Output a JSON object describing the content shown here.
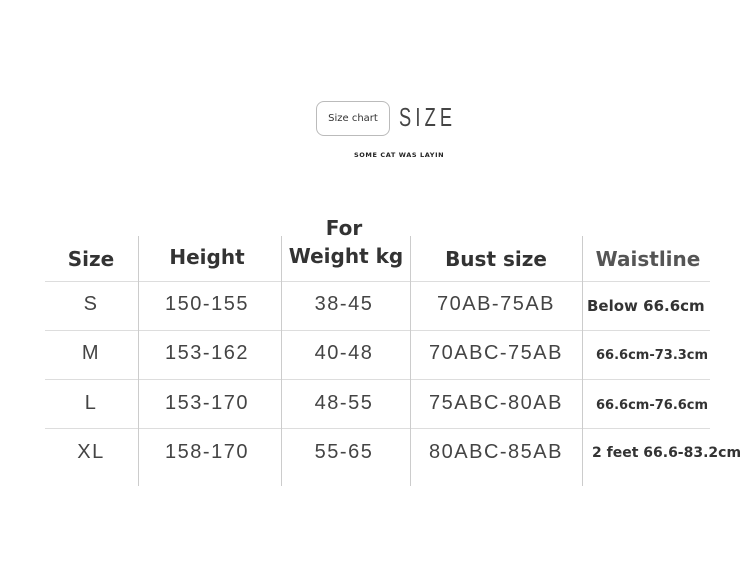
{
  "header": {
    "badge": "Size chart",
    "title": "SIZE",
    "subtitle": "SOME CAT WAS LAYIN"
  },
  "table": {
    "columns": [
      "Size",
      "Height",
      "For Weight kg",
      "Bust size",
      "Waistline"
    ],
    "weight_header_line1": "For",
    "weight_header_line2": "Weight kg",
    "rows": [
      [
        "S",
        "150-155",
        "38-45",
        "70AB-75AB",
        "Below 66.6cm"
      ],
      [
        "M",
        "153-162",
        "40-48",
        "70ABC-75AB",
        "66.6cm-73.3cm"
      ],
      [
        "L",
        "153-170",
        "48-55",
        "75ABC-80AB",
        "66.6cm-76.6cm"
      ],
      [
        "XL",
        "158-170",
        "55-65",
        "80ABC-85AB",
        "2 feet 66.6-83.2cm"
      ]
    ]
  }
}
